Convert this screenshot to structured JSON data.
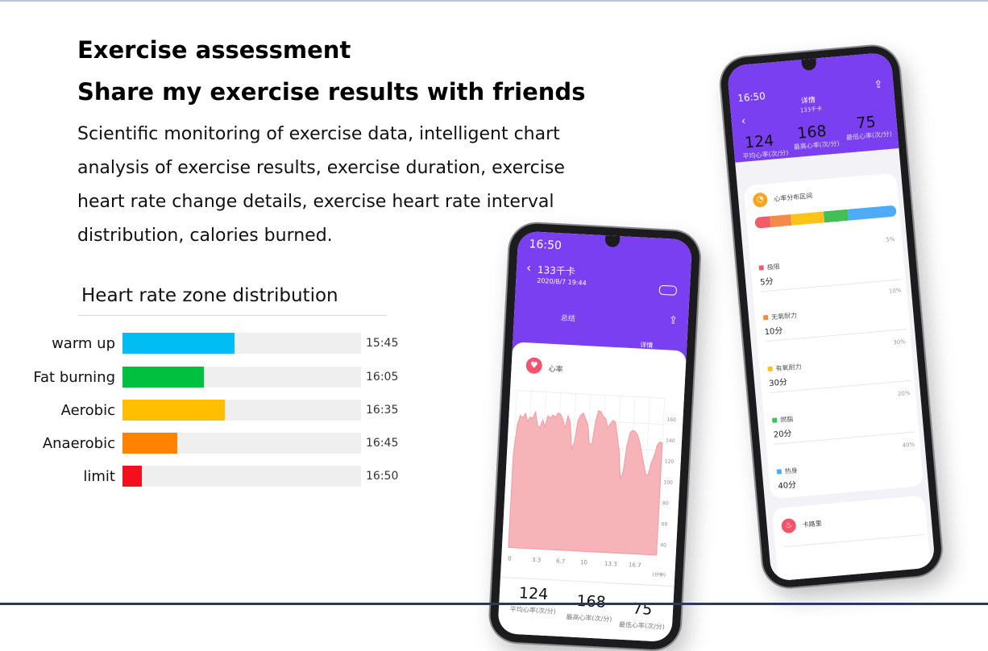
{
  "headline": {
    "line1": "Exercise assessment",
    "line2": "Share my exercise results with friends"
  },
  "description": [
    "Scientific monitoring of exercise data, intelligent chart",
    "analysis of exercise results, exercise duration, exercise",
    "heart rate change details, exercise heart rate interval",
    "distribution, calories burned."
  ],
  "zone_chart": {
    "title": "Heart rate zone distribution",
    "rows": [
      {
        "label": "warm up",
        "time": "15:45",
        "fraction": 0.47,
        "color": "#00bdf2"
      },
      {
        "label": "Fat burning",
        "time": "16:05",
        "fraction": 0.34,
        "color": "#00c040"
      },
      {
        "label": "Aerobic",
        "time": "16:35",
        "fraction": 0.43,
        "color": "#ffbe00"
      },
      {
        "label": "Anaerobic",
        "time": "16:45",
        "fraction": 0.23,
        "color": "#ff8200"
      },
      {
        "label": "limit",
        "time": "16:50",
        "fraction": 0.08,
        "color": "#f50f1e"
      }
    ]
  },
  "phone_left": {
    "time": "16:50",
    "calories": "133千卡",
    "date": "2020/8/7 19:44",
    "tab_summary": "总结",
    "tab_detail": "详情",
    "heart_card_title": "心率",
    "x_ticks": [
      "0",
      "3.3",
      "6.7",
      "10",
      "13.3",
      "16.7"
    ],
    "x_unit": "(分钟)",
    "y_ticks": [
      "160",
      "140",
      "120",
      "100",
      "80",
      "60",
      "40"
    ],
    "heart_series": [
      112,
      140,
      148,
      146,
      150,
      143,
      147,
      146,
      152,
      140,
      138,
      145,
      139,
      149,
      147,
      150,
      148,
      152,
      151,
      146,
      139,
      150,
      144,
      121,
      126,
      146,
      151,
      153,
      148,
      143,
      126,
      126,
      146,
      156,
      155,
      151,
      149,
      141,
      145,
      148,
      146,
      133,
      121,
      96,
      103,
      126,
      138,
      140,
      139,
      136,
      130,
      120,
      111,
      101,
      101,
      112,
      118,
      128,
      131,
      130
    ],
    "avg_hr": "124",
    "avg_hr_label": "平均心率(次/分)",
    "max_hr": "168",
    "max_hr_label": "最高心率(次/分)",
    "min_hr": "75",
    "min_hr_label": "最低心率(次/分)"
  },
  "phone_right": {
    "time": "16:50",
    "header_title": "详情",
    "header_sub": "133千卡",
    "avg_hr": "124",
    "avg_hr_label": "平均心率(次/分)",
    "max_hr": "168",
    "max_hr_label": "最高心率(次/分)",
    "min_hr": "75",
    "min_hr_label": "最低心率(次/分)",
    "zone_card_title": "心率分布区间",
    "zone_bar_colors": [
      "#f25c6a",
      "#f5894a",
      "#fcc419",
      "#40c057",
      "#4dabf7"
    ],
    "zones": [
      {
        "name": "极限",
        "minutes": "5分",
        "pct": "5%",
        "color": "#f25c6a"
      },
      {
        "name": "无氧耐力",
        "minutes": "10分",
        "pct": "10%",
        "color": "#f5894a"
      },
      {
        "name": "有氧耐力",
        "minutes": "30分",
        "pct": "30%",
        "color": "#fcc419"
      },
      {
        "name": "燃脂",
        "minutes": "20分",
        "pct": "20%",
        "color": "#40c057"
      },
      {
        "name": "热身",
        "minutes": "40分",
        "pct": "40%",
        "color": "#4dabf7"
      }
    ],
    "calorie_card_title": "卡路里"
  }
}
